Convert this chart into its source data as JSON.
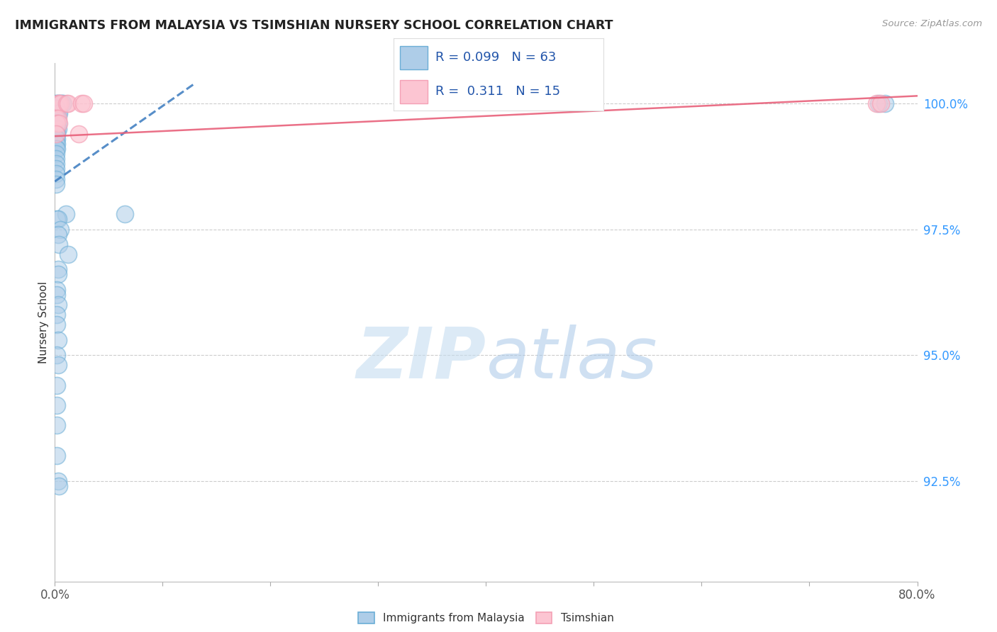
{
  "title": "IMMIGRANTS FROM MALAYSIA VS TSIMSHIAN NURSERY SCHOOL CORRELATION CHART",
  "source": "Source: ZipAtlas.com",
  "ylabel": "Nursery School",
  "ytick_labels": [
    "92.5%",
    "95.0%",
    "97.5%",
    "100.0%"
  ],
  "ytick_values": [
    0.925,
    0.95,
    0.975,
    1.0
  ],
  "xlim": [
    0.0,
    0.8
  ],
  "ylim": [
    0.905,
    1.008
  ],
  "blue_fill_color": "#aecde8",
  "blue_edge_color": "#6baed6",
  "pink_fill_color": "#fcc5d2",
  "pink_edge_color": "#f4a0b5",
  "blue_line_color": "#3a7abf",
  "pink_line_color": "#e8607a",
  "blue_scatter": [
    [
      0.001,
      1.0
    ],
    [
      0.002,
      1.0
    ],
    [
      0.003,
      1.0
    ],
    [
      0.004,
      1.0
    ],
    [
      0.005,
      1.0
    ],
    [
      0.006,
      1.0
    ],
    [
      0.007,
      1.0
    ],
    [
      0.008,
      1.0
    ],
    [
      0.001,
      0.999
    ],
    [
      0.002,
      0.999
    ],
    [
      0.002,
      0.998
    ],
    [
      0.003,
      0.998
    ],
    [
      0.004,
      0.998
    ],
    [
      0.001,
      0.997
    ],
    [
      0.002,
      0.997
    ],
    [
      0.001,
      0.996
    ],
    [
      0.002,
      0.996
    ],
    [
      0.003,
      0.996
    ],
    [
      0.001,
      0.995
    ],
    [
      0.002,
      0.995
    ],
    [
      0.003,
      0.995
    ],
    [
      0.001,
      0.994
    ],
    [
      0.002,
      0.994
    ],
    [
      0.001,
      0.993
    ],
    [
      0.002,
      0.993
    ],
    [
      0.001,
      0.992
    ],
    [
      0.002,
      0.992
    ],
    [
      0.001,
      0.991
    ],
    [
      0.002,
      0.991
    ],
    [
      0.001,
      0.99
    ],
    [
      0.001,
      0.989
    ],
    [
      0.001,
      0.988
    ],
    [
      0.001,
      0.987
    ],
    [
      0.001,
      0.986
    ],
    [
      0.001,
      0.985
    ],
    [
      0.001,
      0.984
    ],
    [
      0.01,
      0.978
    ],
    [
      0.065,
      0.978
    ],
    [
      0.002,
      0.977
    ],
    [
      0.003,
      0.977
    ],
    [
      0.005,
      0.975
    ],
    [
      0.003,
      0.974
    ],
    [
      0.004,
      0.972
    ],
    [
      0.012,
      0.97
    ],
    [
      0.003,
      0.967
    ],
    [
      0.003,
      0.966
    ],
    [
      0.002,
      0.963
    ],
    [
      0.002,
      0.962
    ],
    [
      0.003,
      0.96
    ],
    [
      0.002,
      0.958
    ],
    [
      0.002,
      0.956
    ],
    [
      0.003,
      0.953
    ],
    [
      0.002,
      0.95
    ],
    [
      0.003,
      0.948
    ],
    [
      0.002,
      0.944
    ],
    [
      0.002,
      0.94
    ],
    [
      0.002,
      0.936
    ],
    [
      0.002,
      0.93
    ],
    [
      0.003,
      0.925
    ],
    [
      0.004,
      0.924
    ],
    [
      0.764,
      1.0
    ],
    [
      0.77,
      1.0
    ]
  ],
  "pink_scatter": [
    [
      0.003,
      1.0
    ],
    [
      0.004,
      1.0
    ],
    [
      0.005,
      1.0
    ],
    [
      0.011,
      1.0
    ],
    [
      0.012,
      1.0
    ],
    [
      0.025,
      1.0
    ],
    [
      0.027,
      1.0
    ],
    [
      0.001,
      0.997
    ],
    [
      0.003,
      0.997
    ],
    [
      0.002,
      0.996
    ],
    [
      0.004,
      0.996
    ],
    [
      0.001,
      0.994
    ],
    [
      0.022,
      0.994
    ],
    [
      0.762,
      1.0
    ],
    [
      0.766,
      1.0
    ]
  ],
  "blue_trend_x": [
    0.0,
    0.13
  ],
  "blue_trend_y": [
    0.9845,
    1.004
  ],
  "pink_trend_x": [
    0.0,
    0.8
  ],
  "pink_trend_y": [
    0.9935,
    1.0015
  ],
  "watermark_zip": "ZIP",
  "watermark_atlas": "atlas"
}
